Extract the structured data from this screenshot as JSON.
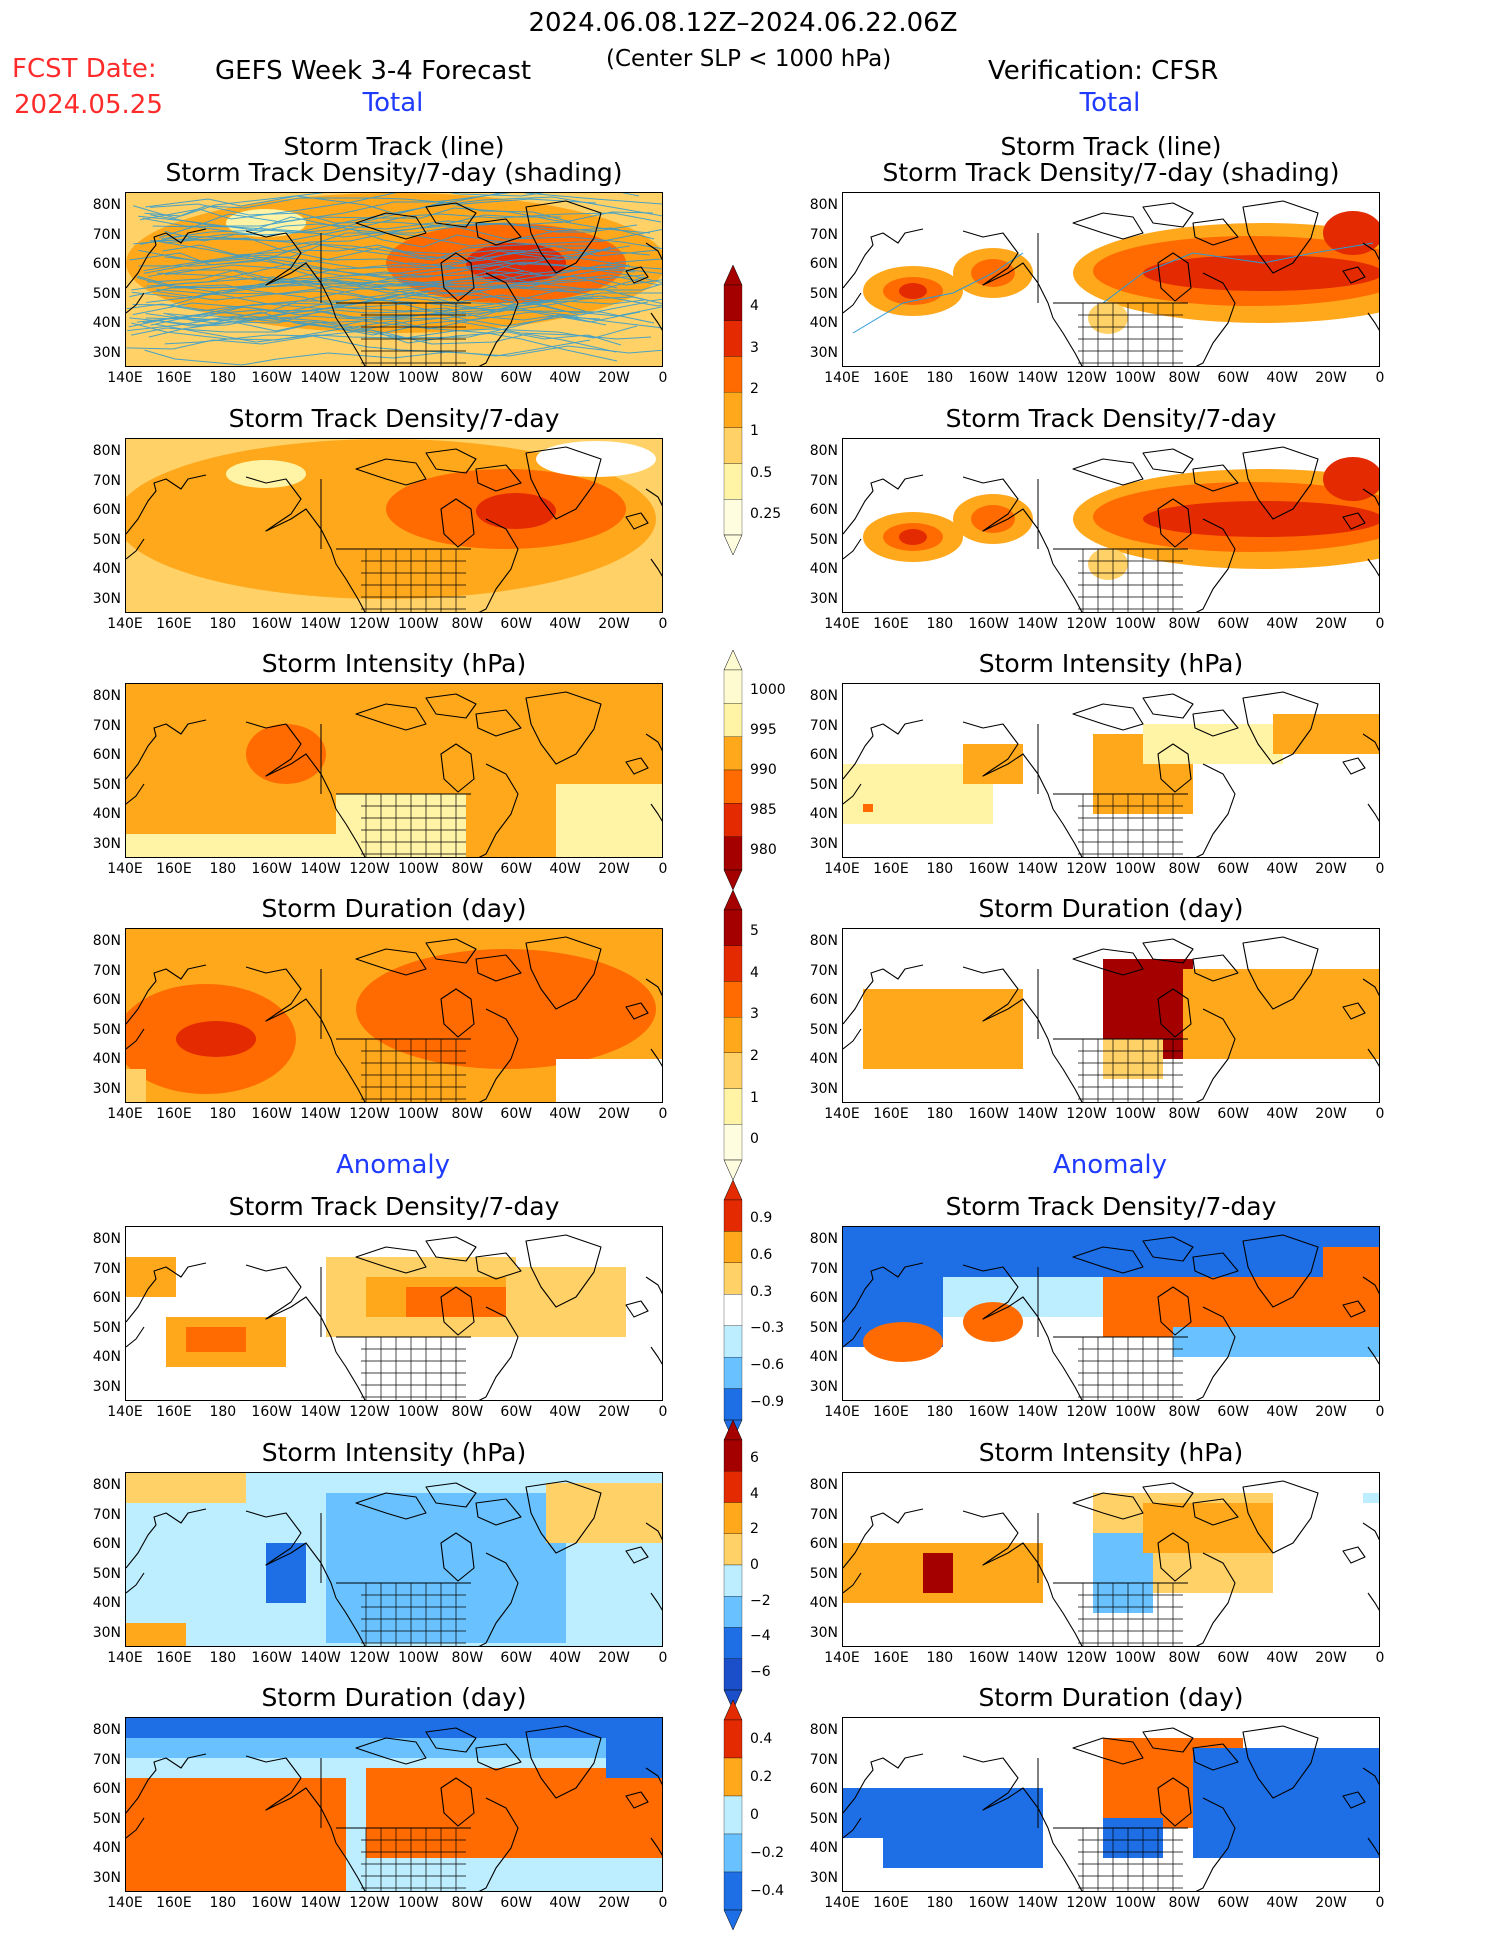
{
  "header": {
    "date_range": "2024.06.08.12Z–2024.06.22.06Z",
    "fcst_label": "FCST Date:",
    "fcst_date": "2024.05.25",
    "left_title": "GEFS Week 3-4 Forecast",
    "center_note": "(Center SLP < 1000 hPa)",
    "right_title": "Verification: CFSR"
  },
  "sections": {
    "total": "Total",
    "anomaly": "Anomaly"
  },
  "panel_titles": {
    "track_line": "Storm Track (line)",
    "track_density_shading": "Storm Track Density/7-day (shading)",
    "track_density": "Storm Track Density/7-day",
    "intensity": "Storm Intensity (hPa)",
    "duration": "Storm Duration (day)"
  },
  "axes": {
    "lat_ticks": [
      "80N",
      "70N",
      "60N",
      "50N",
      "40N",
      "30N"
    ],
    "lon_ticks": [
      "140E",
      "160E",
      "180",
      "160W",
      "140W",
      "120W",
      "100W",
      "80W",
      "60W",
      "40W",
      "20W",
      "0"
    ]
  },
  "colorbars": {
    "density_total": [
      "4",
      "3",
      "2",
      "1",
      "0.5",
      "0.25"
    ],
    "intensity_total": [
      "1000",
      "995",
      "990",
      "985",
      "980"
    ],
    "duration_total": [
      "5",
      "4",
      "3",
      "2",
      "1",
      "0"
    ],
    "density_anom": [
      "0.9",
      "0.6",
      "0.3",
      "−0.3",
      "−0.6",
      "−0.9"
    ],
    "intensity_anom": [
      "6",
      "4",
      "2",
      "0",
      "−2",
      "−4",
      "−6"
    ],
    "duration_anom": [
      "0.4",
      "0.2",
      "0",
      "−0.2",
      "−0.4"
    ]
  },
  "colors": {
    "warm": [
      "#fff4a6",
      "#ffd166",
      "#ffa81c",
      "#ff6b00",
      "#e42a00",
      "#a50000"
    ],
    "cool": [
      "#bdeeff",
      "#69c2ff",
      "#1e6fe6"
    ],
    "track_line": "#2a9ad6"
  }
}
